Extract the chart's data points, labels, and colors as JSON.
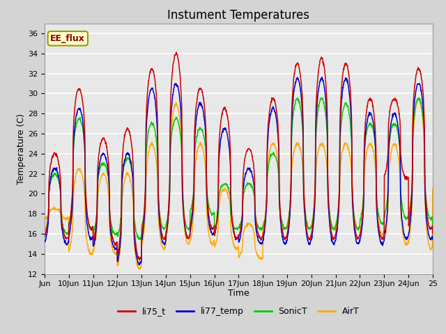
{
  "title": "Instument Temperatures",
  "xlabel": "Time",
  "ylabel": "Temperature (C)",
  "ylim": [
    12,
    37
  ],
  "yticks": [
    12,
    14,
    16,
    18,
    20,
    22,
    24,
    26,
    28,
    30,
    32,
    34,
    36
  ],
  "xlim": [
    9,
    25
  ],
  "xtick_positions": [
    9,
    10,
    11,
    12,
    13,
    14,
    15,
    16,
    17,
    18,
    19,
    20,
    21,
    22,
    23,
    24,
    25
  ],
  "xtick_display": [
    "Jun",
    "10Jun",
    "11Jun",
    "12Jun",
    "13Jun",
    "14Jun",
    "15Jun",
    "16Jun",
    "17Jun",
    "18Jun",
    "19Jun",
    "20Jun",
    "21Jun",
    "22Jun",
    "23Jun",
    "24Jun",
    "25"
  ],
  "colors": {
    "li75_t": "#cc0000",
    "li77_temp": "#0000cc",
    "SonicT": "#00cc00",
    "AirT": "#ffaa00"
  },
  "legend_label": "EE_flux",
  "legend_bg": "#ffffcc",
  "legend_border": "#999900",
  "fig_bg": "#d4d4d4",
  "plot_bg": "#e8e8e8",
  "grid_color": "#ffffff",
  "line_width": 1.1,
  "title_fontsize": 12,
  "axis_fontsize": 9,
  "tick_fontsize": 8
}
